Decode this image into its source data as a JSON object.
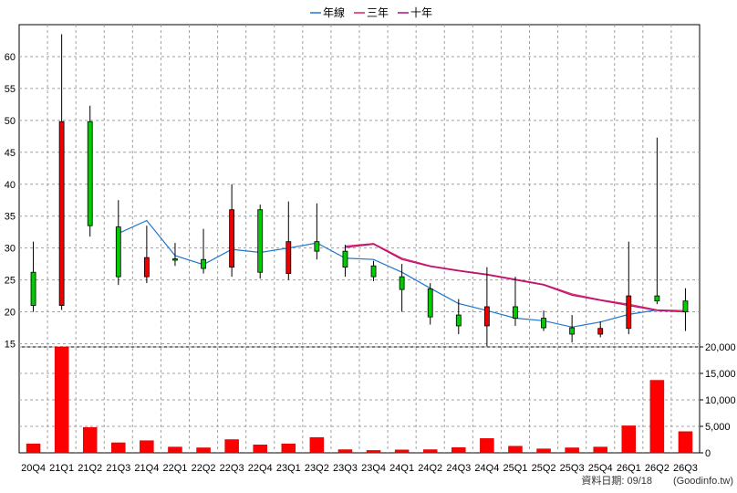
{
  "chart_data": {
    "type": "candlestick",
    "legend": {
      "placement": "top-center",
      "items": [
        {
          "name": "年線",
          "color": "#1f77d0"
        },
        {
          "name": "三年",
          "color": "#e0205a"
        },
        {
          "name": "十年",
          "color": "#b0107a"
        }
      ]
    },
    "categories": [
      "20Q4",
      "21Q1",
      "21Q2",
      "21Q3",
      "21Q4",
      "22Q1",
      "22Q2",
      "22Q3",
      "22Q4",
      "23Q1",
      "23Q2",
      "23Q3",
      "23Q4",
      "24Q1",
      "24Q2",
      "24Q3",
      "24Q4",
      "25Q1",
      "25Q2",
      "25Q3",
      "25Q4",
      "26Q1",
      "26Q2",
      "26Q3"
    ],
    "price_axis": {
      "ylim": [
        14.5,
        65
      ],
      "ticks": [
        15,
        20,
        25,
        30,
        35,
        40,
        45,
        50,
        55,
        60
      ]
    },
    "volume_axis": {
      "ylim": [
        0,
        20000
      ],
      "ticks": [
        0,
        5000,
        10000,
        15000,
        20000
      ],
      "tick_labels": [
        "0",
        "5,000",
        "10,000",
        "15,000",
        "20,000"
      ]
    },
    "candles": [
      {
        "open": 21.0,
        "close": 26.2,
        "high": 31.0,
        "low": 20.0
      },
      {
        "open": 49.8,
        "close": 21.0,
        "high": 63.5,
        "low": 20.3
      },
      {
        "open": 33.5,
        "close": 49.8,
        "high": 52.3,
        "low": 31.8
      },
      {
        "open": 25.5,
        "close": 33.3,
        "high": 37.5,
        "low": 24.2
      },
      {
        "open": 28.5,
        "close": 25.5,
        "high": 33.5,
        "low": 24.5
      },
      {
        "open": 28.2,
        "close": 28.3,
        "high": 30.8,
        "low": 27.2
      },
      {
        "open": 26.8,
        "close": 28.2,
        "high": 33.0,
        "low": 26.0
      },
      {
        "open": 36.0,
        "close": 27.0,
        "high": 40.0,
        "low": 25.5
      },
      {
        "open": 26.2,
        "close": 36.0,
        "high": 36.8,
        "low": 25.2
      },
      {
        "open": 31.0,
        "close": 26.0,
        "high": 37.3,
        "low": 25.0
      },
      {
        "open": 29.5,
        "close": 31.0,
        "high": 37.0,
        "low": 28.2
      },
      {
        "open": 27.0,
        "close": 29.5,
        "high": 30.5,
        "low": 25.5
      },
      {
        "open": 25.5,
        "close": 27.2,
        "high": 28.0,
        "low": 24.8
      },
      {
        "open": 23.5,
        "close": 25.5,
        "high": 27.5,
        "low": 20.0
      },
      {
        "open": 19.2,
        "close": 23.6,
        "high": 24.5,
        "low": 18.0
      },
      {
        "open": 17.8,
        "close": 19.5,
        "high": 22.0,
        "low": 16.5
      },
      {
        "open": 20.8,
        "close": 17.8,
        "high": 27.0,
        "low": 14.6
      },
      {
        "open": 19.0,
        "close": 20.8,
        "high": 25.5,
        "low": 17.8
      },
      {
        "open": 17.5,
        "close": 19.0,
        "high": 20.2,
        "low": 17.0
      },
      {
        "open": 16.5,
        "close": 17.5,
        "high": 19.5,
        "low": 15.2
      },
      {
        "open": 17.4,
        "close": 16.5,
        "high": 18.5,
        "low": 16.0
      },
      {
        "open": 22.5,
        "close": 17.4,
        "high": 31.0,
        "low": 16.5
      },
      {
        "open": 21.7,
        "close": 22.5,
        "high": 47.3,
        "low": 21.2
      },
      {
        "open": 20.0,
        "close": 21.7,
        "high": 23.7,
        "low": 17.0
      }
    ],
    "lines": [
      {
        "name": "年線",
        "start_index": 3,
        "values": [
          32.3,
          34.3,
          28.8,
          27.4,
          29.8,
          29.3,
          30.0,
          30.8,
          28.4,
          28.2,
          26.2,
          23.7,
          21.3,
          20.2,
          19.0,
          18.6,
          17.6,
          18.4,
          19.6,
          20.3
        ]
      },
      {
        "name": "三年",
        "start_index": 11,
        "values": [
          30.3,
          30.7,
          28.4,
          27.2,
          26.5,
          25.9,
          25.1,
          24.3,
          22.8,
          21.9,
          21.2,
          20.3,
          20.2
        ]
      },
      {
        "name": "十年",
        "start_index": 11,
        "values": [
          30.1,
          30.6,
          28.2,
          27.1,
          26.4,
          25.8,
          25.0,
          24.2,
          22.6,
          21.8,
          21.0,
          20.2,
          20.0
        ]
      }
    ],
    "volume": [
      1700,
      20200,
      4800,
      1900,
      2300,
      1100,
      950,
      2500,
      1500,
      1700,
      2900,
      600,
      450,
      550,
      600,
      1000,
      2700,
      1250,
      750,
      950,
      1100,
      5100,
      13700,
      4000
    ]
  },
  "footer": {
    "date_label": "資料日期: 09/18",
    "source_label": "(Goodinfo.tw)"
  }
}
